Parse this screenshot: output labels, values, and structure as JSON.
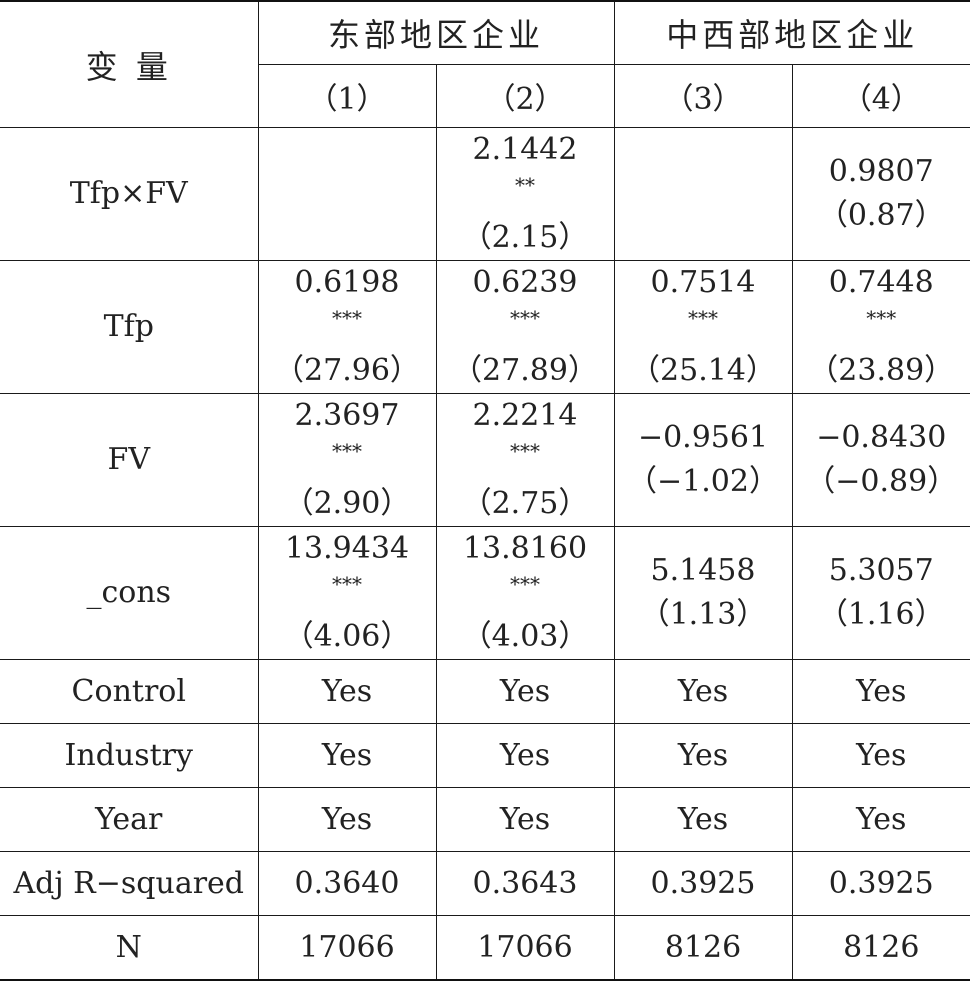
{
  "header": {
    "var_label": "变 量",
    "group_east": "东部地区企业",
    "group_midwest": "中西部地区企业",
    "cols": [
      "（1）",
      "（2）",
      "（3）",
      "（4）"
    ]
  },
  "rows": [
    {
      "label": "Tfp×FV",
      "cells": [
        {
          "coef": "",
          "stars": "",
          "t": ""
        },
        {
          "coef": "2.1442",
          "stars": "**",
          "t": "（2.15）"
        },
        {
          "coef": "",
          "stars": "",
          "t": ""
        },
        {
          "coef": "0.9807",
          "stars": "",
          "t": "（0.87）"
        }
      ]
    },
    {
      "label": "Tfp",
      "cells": [
        {
          "coef": "0.6198",
          "stars": "***",
          "t": "（27.96）"
        },
        {
          "coef": "0.6239",
          "stars": "***",
          "t": "（27.89）"
        },
        {
          "coef": "0.7514",
          "stars": "***",
          "t": "（25.14）"
        },
        {
          "coef": "0.7448",
          "stars": "***",
          "t": "（23.89）"
        }
      ]
    },
    {
      "label": "FV",
      "cells": [
        {
          "coef": "2.3697",
          "stars": "***",
          "t": "（2.90）"
        },
        {
          "coef": "2.2214",
          "stars": "***",
          "t": "（2.75）"
        },
        {
          "coef": "−0.9561",
          "stars": "",
          "t": "（−1.02）"
        },
        {
          "coef": "−0.8430",
          "stars": "",
          "t": "（−0.89）"
        }
      ]
    },
    {
      "label": "_cons",
      "cells": [
        {
          "coef": "13.9434",
          "stars": "***",
          "t": "（4.06）"
        },
        {
          "coef": "13.8160",
          "stars": "***",
          "t": "（4.03）"
        },
        {
          "coef": "5.1458",
          "stars": "",
          "t": "（1.13）"
        },
        {
          "coef": "5.3057",
          "stars": "",
          "t": "（1.16）"
        }
      ]
    }
  ],
  "simple_rows": [
    {
      "label": "Control",
      "values": [
        "Yes",
        "Yes",
        "Yes",
        "Yes"
      ]
    },
    {
      "label": "Industry",
      "values": [
        "Yes",
        "Yes",
        "Yes",
        "Yes"
      ]
    },
    {
      "label": "Year",
      "values": [
        "Yes",
        "Yes",
        "Yes",
        "Yes"
      ]
    },
    {
      "label": "Adj R−squared",
      "values": [
        "0.3640",
        "0.3643",
        "0.3925",
        "0.3925"
      ]
    },
    {
      "label": "N",
      "values": [
        "17066",
        "17066",
        "8126",
        "8126"
      ]
    }
  ]
}
